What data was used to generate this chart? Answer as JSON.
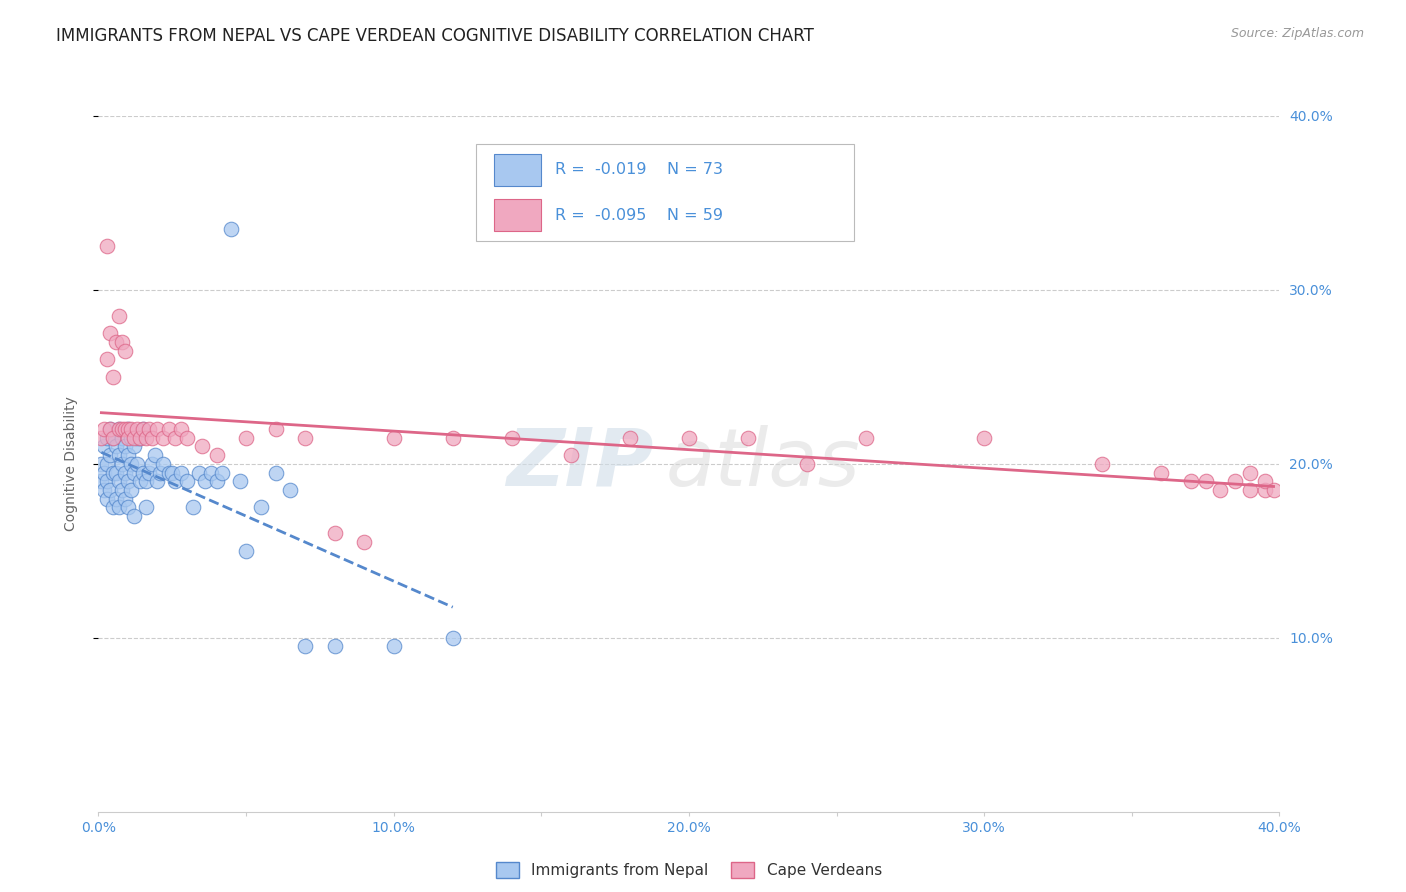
{
  "title": "IMMIGRANTS FROM NEPAL VS CAPE VERDEAN COGNITIVE DISABILITY CORRELATION CHART",
  "source_text": "Source: ZipAtlas.com",
  "ylabel": "Cognitive Disability",
  "xlim": [
    0.0,
    0.4
  ],
  "ylim": [
    0.0,
    0.4
  ],
  "xtick_labels": [
    "0.0%",
    "",
    "10.0%",
    "",
    "20.0%",
    "",
    "30.0%",
    "",
    "40.0%"
  ],
  "xtick_vals": [
    0.0,
    0.05,
    0.1,
    0.15,
    0.2,
    0.25,
    0.3,
    0.35,
    0.4
  ],
  "ytick_vals": [
    0.1,
    0.2,
    0.3,
    0.4
  ],
  "ytick_labels": [
    "10.0%",
    "20.0%",
    "30.0%",
    "40.0%"
  ],
  "color_nepal": "#a8c8f0",
  "color_cape": "#f0a8c0",
  "color_trendline_nepal": "#5588cc",
  "color_trendline_cape": "#dd6688",
  "watermark_zip": "ZIP",
  "watermark_atlas": "atlas",
  "nepal_x": [
    0.001,
    0.001,
    0.002,
    0.002,
    0.002,
    0.003,
    0.003,
    0.003,
    0.003,
    0.004,
    0.004,
    0.004,
    0.005,
    0.005,
    0.005,
    0.006,
    0.006,
    0.006,
    0.007,
    0.007,
    0.007,
    0.007,
    0.008,
    0.008,
    0.008,
    0.009,
    0.009,
    0.009,
    0.01,
    0.01,
    0.01,
    0.01,
    0.011,
    0.011,
    0.011,
    0.012,
    0.012,
    0.012,
    0.013,
    0.013,
    0.014,
    0.014,
    0.015,
    0.015,
    0.016,
    0.016,
    0.017,
    0.018,
    0.019,
    0.02,
    0.021,
    0.022,
    0.024,
    0.025,
    0.026,
    0.028,
    0.03,
    0.032,
    0.034,
    0.036,
    0.038,
    0.04,
    0.042,
    0.045,
    0.048,
    0.05,
    0.055,
    0.06,
    0.065,
    0.07,
    0.08,
    0.1,
    0.12
  ],
  "nepal_y": [
    0.2,
    0.19,
    0.21,
    0.195,
    0.185,
    0.215,
    0.2,
    0.19,
    0.18,
    0.22,
    0.205,
    0.185,
    0.215,
    0.195,
    0.175,
    0.21,
    0.195,
    0.18,
    0.22,
    0.205,
    0.19,
    0.175,
    0.215,
    0.2,
    0.185,
    0.21,
    0.195,
    0.18,
    0.22,
    0.205,
    0.19,
    0.175,
    0.215,
    0.2,
    0.185,
    0.21,
    0.195,
    0.17,
    0.215,
    0.2,
    0.215,
    0.19,
    0.22,
    0.195,
    0.19,
    0.175,
    0.195,
    0.2,
    0.205,
    0.19,
    0.195,
    0.2,
    0.195,
    0.195,
    0.19,
    0.195,
    0.19,
    0.175,
    0.195,
    0.19,
    0.195,
    0.19,
    0.195,
    0.335,
    0.19,
    0.15,
    0.175,
    0.195,
    0.185,
    0.095,
    0.095,
    0.095,
    0.1
  ],
  "cape_x": [
    0.001,
    0.002,
    0.003,
    0.003,
    0.004,
    0.004,
    0.005,
    0.005,
    0.006,
    0.007,
    0.007,
    0.008,
    0.008,
    0.009,
    0.009,
    0.01,
    0.01,
    0.011,
    0.012,
    0.013,
    0.014,
    0.015,
    0.016,
    0.017,
    0.018,
    0.02,
    0.022,
    0.024,
    0.026,
    0.028,
    0.03,
    0.035,
    0.04,
    0.05,
    0.06,
    0.07,
    0.08,
    0.09,
    0.1,
    0.12,
    0.14,
    0.16,
    0.18,
    0.2,
    0.22,
    0.24,
    0.26,
    0.3,
    0.34,
    0.36,
    0.37,
    0.375,
    0.38,
    0.385,
    0.39,
    0.39,
    0.395,
    0.395,
    0.398
  ],
  "cape_y": [
    0.215,
    0.22,
    0.325,
    0.26,
    0.22,
    0.275,
    0.215,
    0.25,
    0.27,
    0.285,
    0.22,
    0.27,
    0.22,
    0.265,
    0.22,
    0.22,
    0.215,
    0.22,
    0.215,
    0.22,
    0.215,
    0.22,
    0.215,
    0.22,
    0.215,
    0.22,
    0.215,
    0.22,
    0.215,
    0.22,
    0.215,
    0.21,
    0.205,
    0.215,
    0.22,
    0.215,
    0.16,
    0.155,
    0.215,
    0.215,
    0.215,
    0.205,
    0.215,
    0.215,
    0.215,
    0.2,
    0.215,
    0.215,
    0.2,
    0.195,
    0.19,
    0.19,
    0.185,
    0.19,
    0.185,
    0.195,
    0.185,
    0.19,
    0.185
  ],
  "background_color": "#ffffff",
  "grid_color": "#cccccc",
  "axis_color": "#4a90d9",
  "title_color": "#222222",
  "title_fontsize": 12,
  "label_fontsize": 10,
  "tick_fontsize": 10
}
